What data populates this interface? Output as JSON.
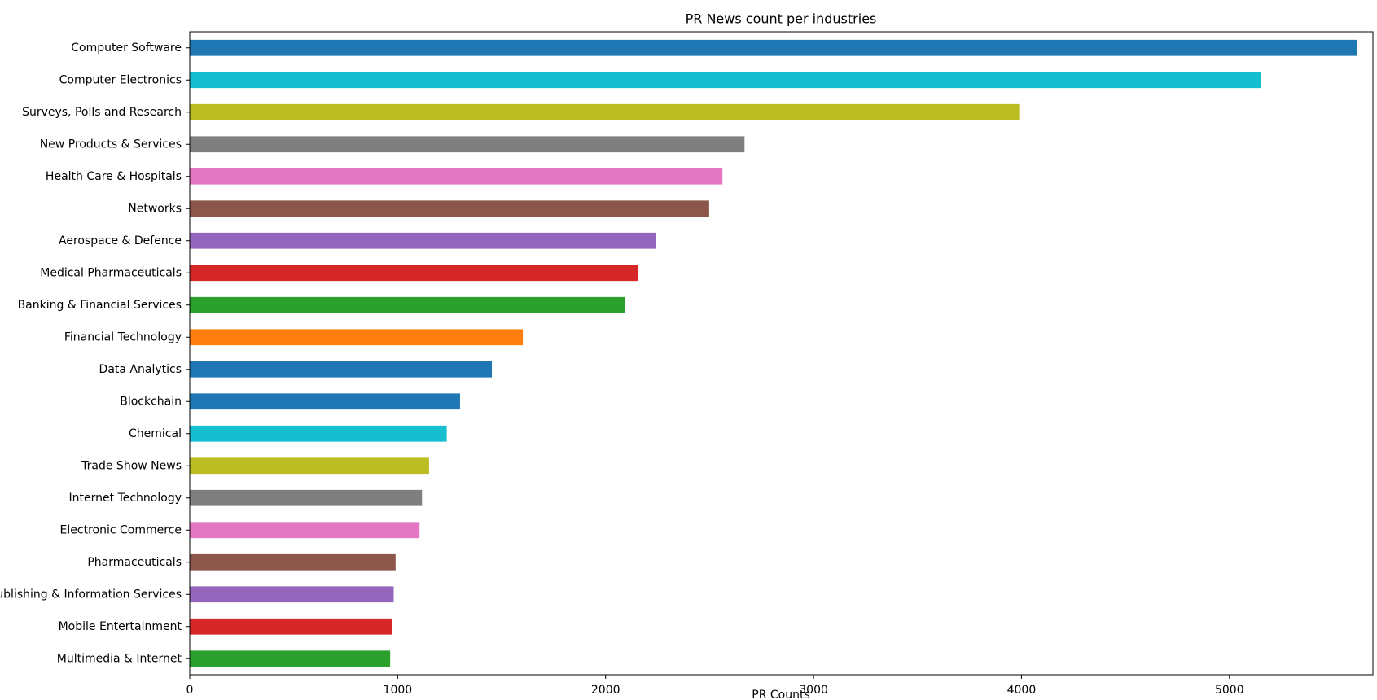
{
  "chart_data": {
    "type": "barh",
    "title": "PR News count per industries",
    "x_label": "PR Counts",
    "categories": [
      "Computer Software",
      "Computer Electronics",
      "Surveys, Polls and Research",
      "New Products & Services",
      "Health Care & Hospitals",
      "Networks",
      "Aerospace & Defence",
      "Medical Pharmaceuticals",
      "Banking & Financial Services",
      "Financial Technology",
      "Data Analytics",
      "Blockchain",
      "Chemical",
      "Trade Show News",
      "Internet Technology",
      "Electronic Commerce",
      "Pharmaceuticals",
      "Publishing & Information Services",
      "Mobile Entertainment",
      "Multimedia & Internet"
    ],
    "values": [
      5612,
      5153,
      3989,
      2668,
      2562,
      2498,
      2243,
      2154,
      2094,
      1602,
      1453,
      1300,
      1236,
      1151,
      1117,
      1105,
      990,
      981,
      973,
      964
    ],
    "colors": [
      "#1f77b4",
      "#17becf",
      "#bcbd22",
      "#7f7f7f",
      "#e377c2",
      "#8c564b",
      "#9467bd",
      "#d62728",
      "#2ca02c",
      "#ff7f0e",
      "#1f77b4",
      "#1f77b4",
      "#17becf",
      "#bcbd22",
      "#7f7f7f",
      "#e377c2",
      "#8c564b",
      "#9467bd",
      "#d62728",
      "#2ca02c"
    ],
    "xlim": [
      0,
      5690
    ],
    "xticks": [
      0,
      1000,
      2000,
      3000,
      4000,
      5000
    ],
    "grid": false
  }
}
